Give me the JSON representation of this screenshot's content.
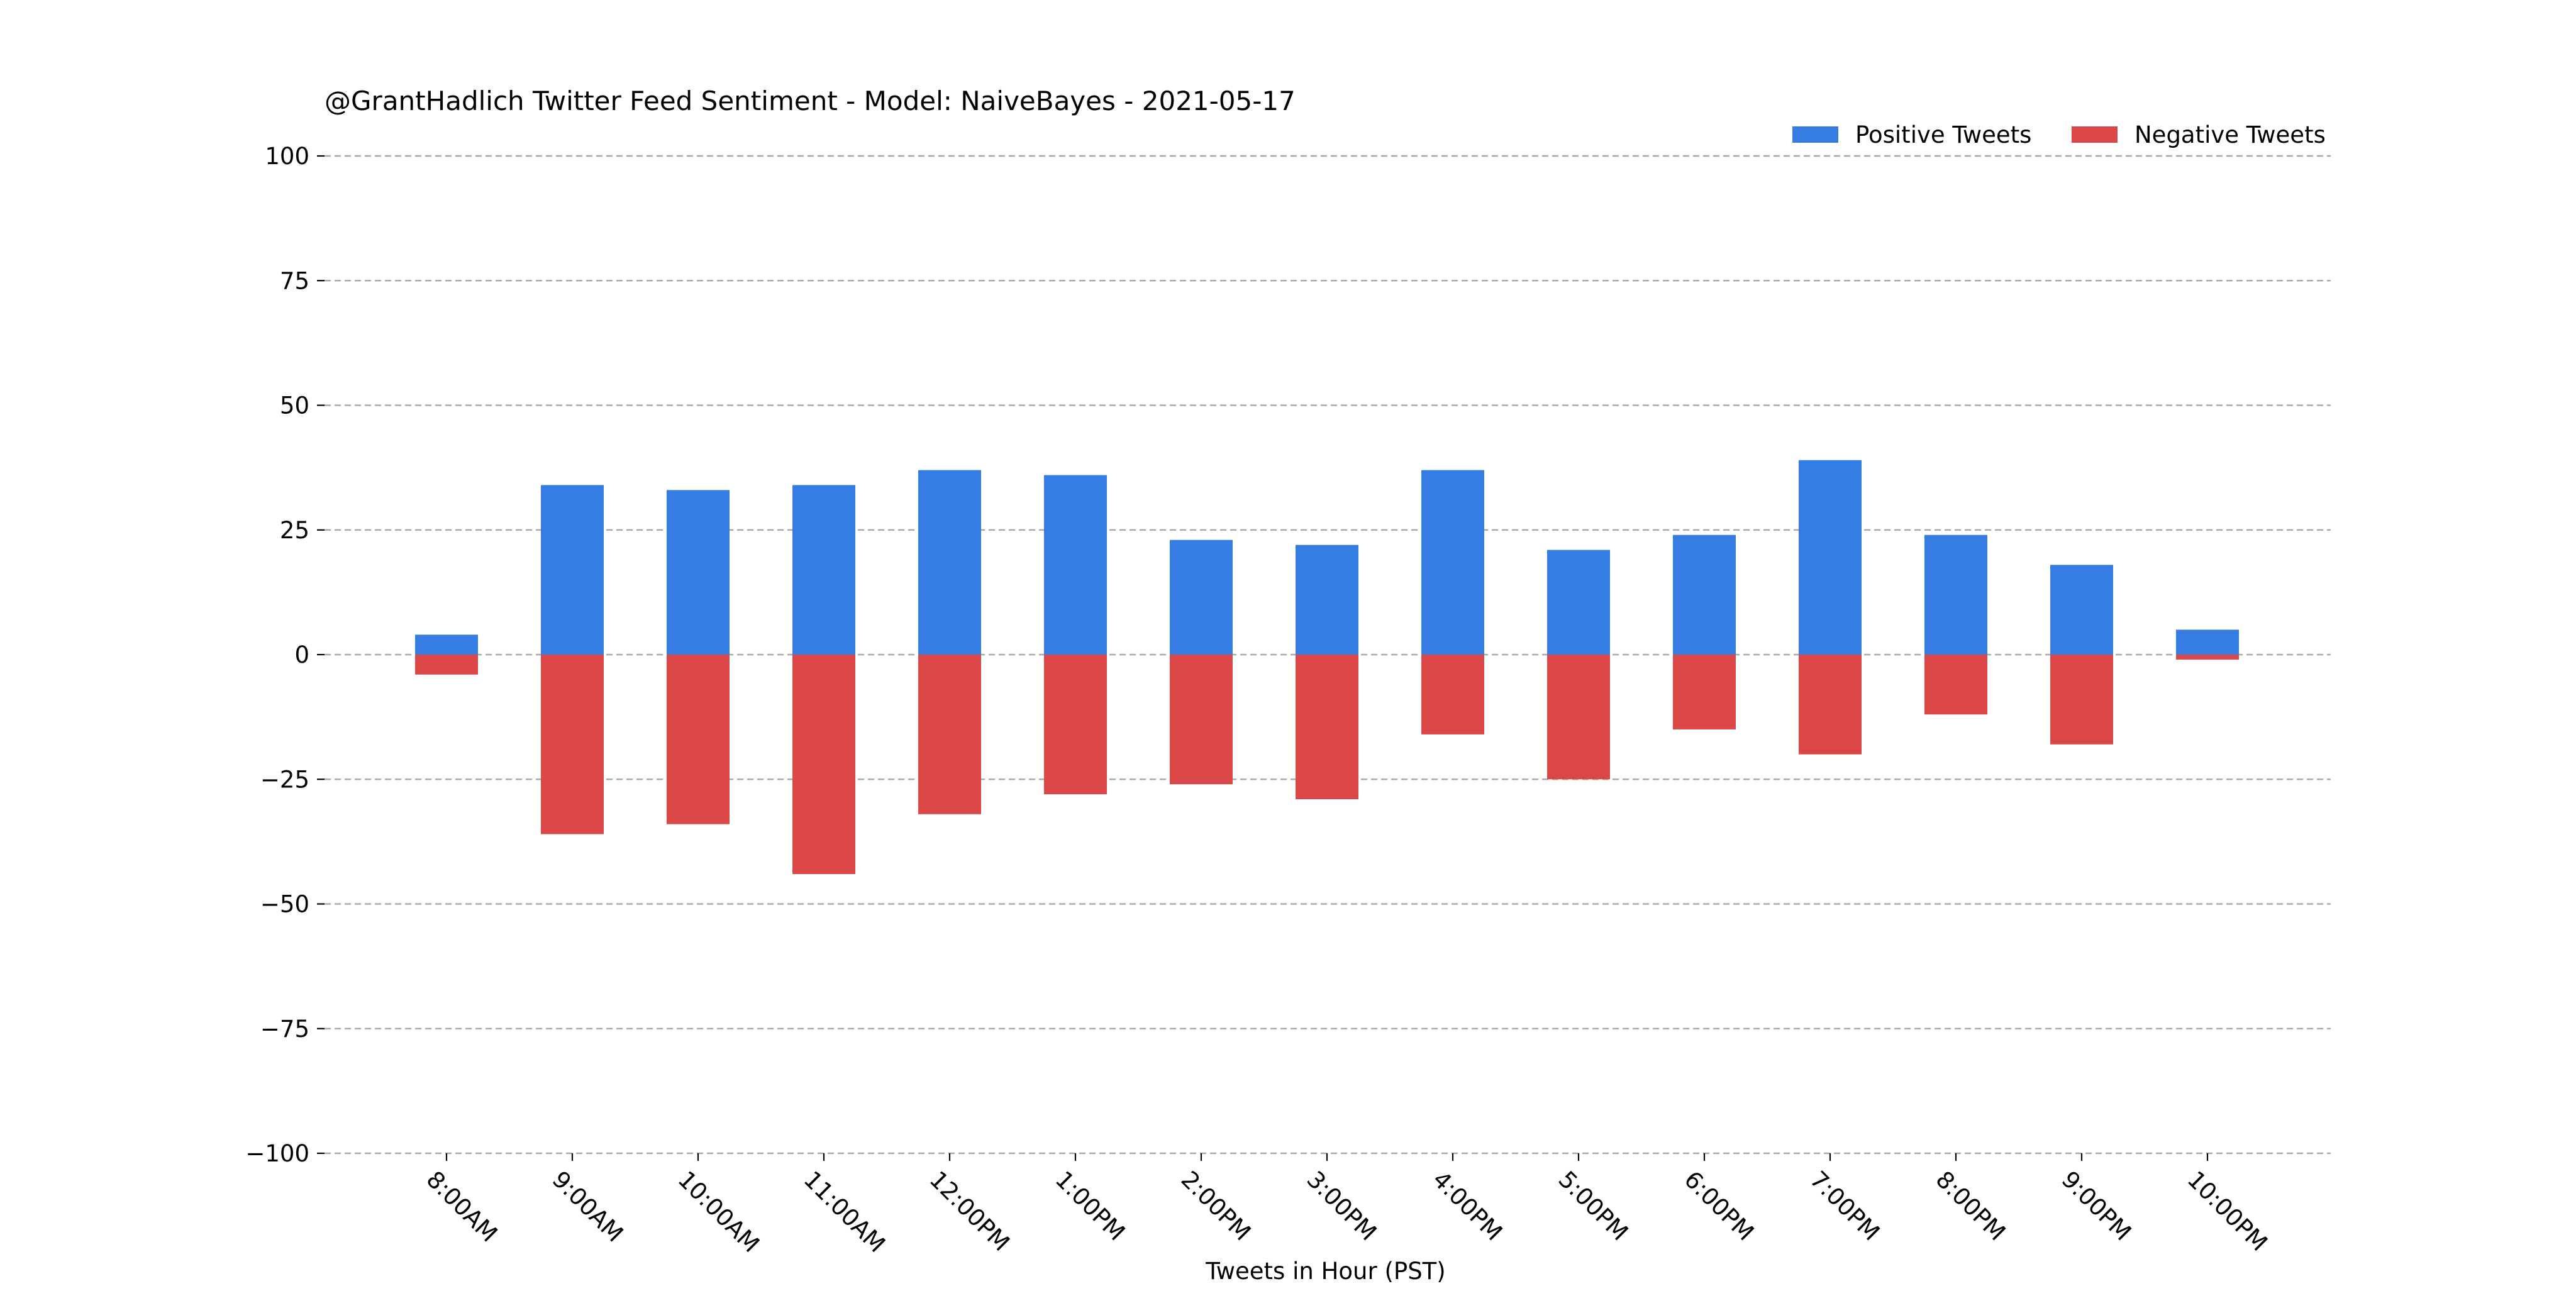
{
  "chart_data": {
    "type": "bar",
    "title": "@GrantHadlich Twitter Feed Sentiment - Model: NaiveBayes - 2021-05-17",
    "xlabel": "Tweets in Hour (PST)",
    "ylabel": "",
    "ylim": [
      -100,
      100
    ],
    "yticks": [
      100,
      75,
      50,
      25,
      0,
      -25,
      -50,
      -75,
      -100
    ],
    "ytick_labels": [
      "100",
      "75",
      "50",
      "25",
      "0",
      "−25",
      "−50",
      "−75",
      "−100"
    ],
    "grid": true,
    "legend_position": "top-right",
    "categories": [
      "8:00AM",
      "9:00AM",
      "10:00AM",
      "11:00AM",
      "12:00PM",
      "1:00PM",
      "2:00PM",
      "3:00PM",
      "4:00PM",
      "5:00PM",
      "6:00PM",
      "7:00PM",
      "8:00PM",
      "9:00PM",
      "10:00PM"
    ],
    "series": [
      {
        "name": "Positive Tweets",
        "color": "#357de3",
        "values": [
          4,
          34,
          33,
          34,
          37,
          36,
          23,
          22,
          37,
          21,
          24,
          39,
          24,
          18,
          5
        ]
      },
      {
        "name": "Negative Tweets",
        "color": "#db4647",
        "values": [
          -4,
          -36,
          -34,
          -44,
          -32,
          -28,
          -26,
          -29,
          -16,
          -25,
          -15,
          -20,
          -12,
          -18,
          -1
        ]
      }
    ]
  }
}
